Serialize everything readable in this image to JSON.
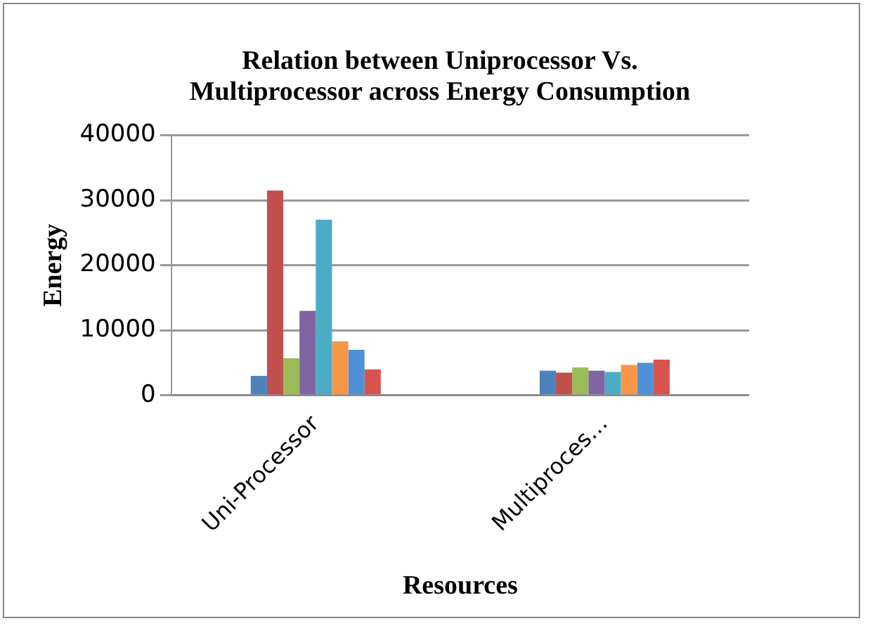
{
  "chart_data": {
    "type": "bar",
    "title": "Relation between Uniprocessor Vs. Multiprocessor  across Energy Consumption",
    "xlabel": "Resources",
    "ylabel": "Energy",
    "categories": [
      "Uni-Processor",
      "Multiproces…"
    ],
    "series": [
      {
        "color": "#4f81bd",
        "values": [
          3000,
          3800
        ]
      },
      {
        "color": "#c0504d",
        "values": [
          31500,
          3500
        ]
      },
      {
        "color": "#9bbb59",
        "values": [
          5700,
          4300
        ]
      },
      {
        "color": "#8064a2",
        "values": [
          13000,
          3800
        ]
      },
      {
        "color": "#4bacc6",
        "values": [
          27000,
          3600
        ]
      },
      {
        "color": "#f79646",
        "values": [
          8300,
          4700
        ]
      },
      {
        "color": "#4f8fd6",
        "values": [
          7000,
          5000
        ]
      },
      {
        "color": "#d9534f",
        "values": [
          4000,
          5500
        ]
      }
    ],
    "ylim": [
      0,
      40000
    ],
    "yticks": [
      0,
      10000,
      20000,
      30000,
      40000
    ],
    "grid": "y",
    "legend": false
  }
}
